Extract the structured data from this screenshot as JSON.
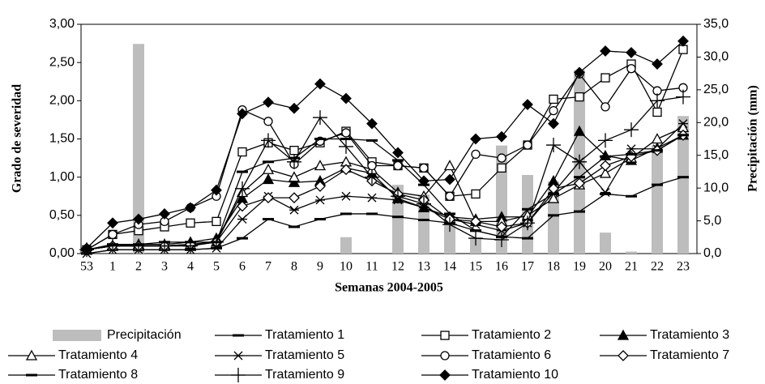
{
  "chart_data": {
    "type": "line",
    "xlabel": "Semanas 2004-2005",
    "ylabel": "Grado de severidad",
    "y2label": "Precipitación (mm)",
    "categories": [
      "53",
      "1",
      "2",
      "3",
      "4",
      "5",
      "6",
      "7",
      "8",
      "9",
      "10",
      "11",
      "12",
      "13",
      "14",
      "15",
      "16",
      "17",
      "18",
      "19",
      "20",
      "21",
      "22",
      "23"
    ],
    "ylim": [
      0,
      3
    ],
    "yticks": [
      {
        "value": 0,
        "label": "0,00"
      },
      {
        "value": 0.5,
        "label": "0,50"
      },
      {
        "value": 1,
        "label": "1,00"
      },
      {
        "value": 1.5,
        "label": "1,50"
      },
      {
        "value": 2,
        "label": "2,00"
      },
      {
        "value": 2.5,
        "label": "2,50"
      },
      {
        "value": 3,
        "label": "3,00"
      }
    ],
    "y2lim": [
      0,
      35
    ],
    "y2ticks": [
      {
        "value": 0,
        "label": "0,0"
      },
      {
        "value": 5,
        "label": "5,0"
      },
      {
        "value": 10,
        "label": "10,0"
      },
      {
        "value": 15,
        "label": "15,0"
      },
      {
        "value": 20,
        "label": "20,0"
      },
      {
        "value": 25,
        "label": "25,0"
      },
      {
        "value": 30,
        "label": "30,0"
      },
      {
        "value": 35,
        "label": "35,0"
      }
    ],
    "legend": "bottom",
    "series": [
      {
        "name": "Precipitación",
        "type": "bar",
        "axis": "y2",
        "color": "#bdbdbd",
        "values": [
          0,
          0,
          32,
          0,
          0,
          0,
          0,
          0,
          0,
          0,
          2.5,
          0,
          10.5,
          9,
          4.5,
          2.5,
          16.5,
          12,
          11,
          28,
          3.2,
          0.3,
          16.5,
          21
        ]
      },
      {
        "name": "Tratamiento 1",
        "color": "#000",
        "marker": "dash",
        "values": [
          0,
          0.05,
          0.05,
          0.05,
          0.05,
          0.07,
          0.2,
          0.45,
          0.35,
          0.45,
          0.52,
          0.52,
          0.48,
          0.44,
          0.4,
          0.3,
          0.22,
          0.2,
          0.5,
          0.55,
          0.78,
          0.75,
          0.9,
          1.0
        ]
      },
      {
        "name": "Tratamiento 2",
        "color": "#000",
        "marker": "square-open",
        "values": [
          0.05,
          0.25,
          0.3,
          0.35,
          0.4,
          0.42,
          1.33,
          1.45,
          1.35,
          1.45,
          1.6,
          1.2,
          1.15,
          1.12,
          0.75,
          0.78,
          1.12,
          1.42,
          2.02,
          2.05,
          2.3,
          2.48,
          1.85,
          2.67
        ]
      },
      {
        "name": "Tratamiento 3",
        "color": "#000",
        "marker": "triangle",
        "values": [
          0.05,
          0.1,
          0.12,
          0.12,
          0.15,
          0.2,
          0.72,
          0.97,
          0.93,
          0.95,
          1.12,
          1.05,
          0.72,
          0.6,
          0.48,
          0.45,
          0.48,
          0.48,
          0.95,
          1.6,
          1.28,
          1.22,
          1.38,
          1.55
        ]
      },
      {
        "name": "Tratamiento 4",
        "color": "#000",
        "marker": "triangle-open",
        "values": [
          0.05,
          0.1,
          0.1,
          0.1,
          0.12,
          0.15,
          0.8,
          1.1,
          1.0,
          1.15,
          1.2,
          1.1,
          0.8,
          0.75,
          1.15,
          0.42,
          0.42,
          0.5,
          0.72,
          0.9,
          1.05,
          1.25,
          1.5,
          1.65
        ]
      },
      {
        "name": "Tratamiento 5",
        "color": "#000",
        "marker": "star",
        "values": [
          0,
          0.05,
          0.05,
          0.05,
          0.05,
          0.07,
          0.45,
          0.75,
          0.57,
          0.7,
          0.75,
          0.73,
          0.7,
          0.6,
          0.45,
          0.38,
          0.3,
          0.4,
          0.8,
          1.2,
          0.8,
          1.37,
          1.37,
          1.7
        ]
      },
      {
        "name": "Tratamiento 6",
        "color": "#000",
        "marker": "circle-open",
        "values": [
          0.05,
          0.25,
          0.38,
          0.42,
          0.6,
          0.75,
          1.88,
          1.73,
          1.17,
          1.47,
          1.58,
          1.15,
          1.15,
          1.12,
          0.75,
          1.3,
          1.25,
          1.42,
          1.87,
          2.35,
          1.92,
          2.42,
          2.13,
          2.17
        ]
      },
      {
        "name": "Tratamiento 7",
        "color": "#000",
        "marker": "diamond-open",
        "values": [
          0.05,
          0.1,
          0.1,
          0.1,
          0.12,
          0.15,
          0.62,
          0.73,
          0.73,
          0.88,
          1.1,
          0.95,
          0.78,
          0.7,
          0.45,
          0.42,
          0.35,
          0.4,
          0.85,
          0.92,
          1.15,
          1.27,
          1.35,
          1.55
        ]
      },
      {
        "name": "Tratamiento 8",
        "color": "#000",
        "marker": "dash",
        "values": [
          0.05,
          0.12,
          0.12,
          0.15,
          0.15,
          0.15,
          1.07,
          1.2,
          1.25,
          1.5,
          1.5,
          1.48,
          1.22,
          0.9,
          0.52,
          0.3,
          0.22,
          0.58,
          0.78,
          1.0,
          1.27,
          1.3,
          1.35,
          1.55
        ]
      },
      {
        "name": "Tratamiento 9",
        "color": "#000",
        "marker": "plus",
        "values": [
          0.05,
          0.1,
          0.1,
          0.1,
          0.1,
          0.15,
          0.85,
          1.48,
          1.2,
          1.78,
          1.4,
          1.0,
          0.75,
          0.65,
          0.38,
          0.2,
          0.18,
          0.4,
          1.42,
          1.2,
          1.48,
          1.62,
          2.0,
          2.05
        ]
      },
      {
        "name": "Tratamiento 10",
        "color": "#000",
        "marker": "diamond",
        "values": [
          0.07,
          0.4,
          0.45,
          0.52,
          0.6,
          0.83,
          1.83,
          1.98,
          1.9,
          2.22,
          2.03,
          1.7,
          1.32,
          0.95,
          0.97,
          1.5,
          1.53,
          1.95,
          1.7,
          2.37,
          2.65,
          2.63,
          2.48,
          2.78
        ]
      }
    ]
  }
}
